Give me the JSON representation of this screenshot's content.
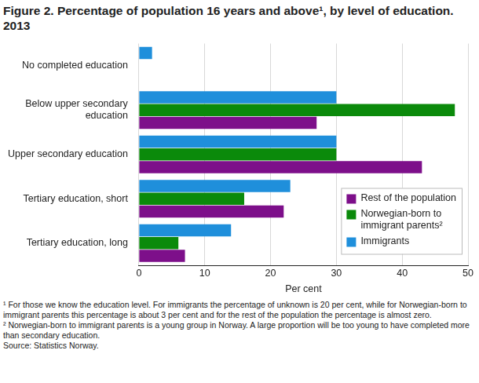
{
  "chart_data": {
    "type": "bar",
    "orientation": "horizontal",
    "title": "Figure 2. Percentage of population 16 years and above¹, by level of education. 2013",
    "x_label": "Per cent",
    "categories": [
      "No completed education",
      "Below upper secondary education",
      "Upper secondary education",
      "Tertiary education, short",
      "Tertiary education, long"
    ],
    "series": [
      {
        "name": "Immigrants",
        "color": "#1f8fdb",
        "values": [
          2,
          30,
          30,
          23,
          14
        ]
      },
      {
        "name": "Norwegian-born to immigrant parents²",
        "color": "#0b8a0b",
        "values": [
          0,
          48,
          30,
          16,
          6
        ]
      },
      {
        "name": "Rest of the population",
        "color": "#7d0f8a",
        "values": [
          0,
          27,
          43,
          22,
          7
        ]
      }
    ],
    "xlim": [
      0,
      50
    ],
    "xticks": [
      0,
      10,
      20,
      30,
      40,
      50
    ],
    "grid": true,
    "legend": "right",
    "footnotes": [
      "¹ For those we know the education level. For immigrants the percentage of unknown is 20 per cent, while for Norwegian-born to immigrant parents this percentage is about 3 per cent and for the rest of the population the percentage is almost zero.",
      "² Norwegian-born to immigrant parents is a young group in Norway. A large proportion will be too young to have completed more than secondary education.",
      "Source: Statistics Norway."
    ]
  }
}
